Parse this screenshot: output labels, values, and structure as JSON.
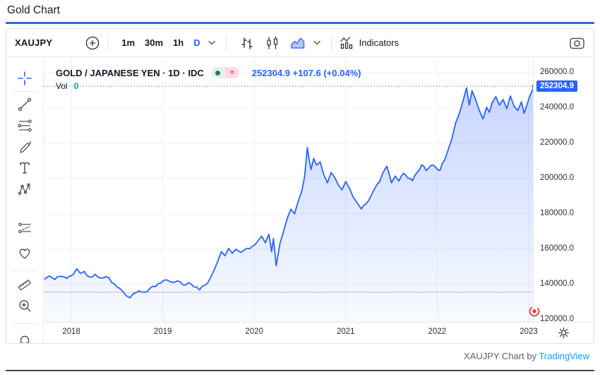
{
  "page": {
    "title": "Gold Chart",
    "attribution_prefix": "XAUJPY Chart by ",
    "attribution_link": "TradingView"
  },
  "toolbar": {
    "symbol": "XAUJPY",
    "intervals": [
      "1m",
      "30m",
      "1h",
      "D"
    ],
    "active_interval": "D",
    "indicators_label": "Indicators",
    "icons": [
      "compare-plus-icon",
      "bars-style-icon",
      "candles-style-icon",
      "area-style-icon",
      "chevron-down-icon",
      "indicators-icon",
      "camera-icon"
    ]
  },
  "sidebar": {
    "tools": [
      "crosshair",
      "trend-line",
      "fib-retracement",
      "brush",
      "text",
      "xabcd-pattern",
      "long-short-position",
      "emoji-heart",
      "measure-ruler",
      "zoom-in",
      "magnet"
    ]
  },
  "legend": {
    "title": "GOLD / JAPANESE YEN · 1D · IDC",
    "market_status": "open",
    "delayed_symbol": "≈",
    "price": "252304.9",
    "change": "+107.6",
    "change_pct": "(+0.04%)",
    "vol_label": "Vol",
    "vol_value": "0"
  },
  "axis": {
    "last_price_label": "252304.9",
    "price_ticks": [
      {
        "label": "260000.0",
        "value": 260000
      },
      {
        "label": "240000.0",
        "value": 240000
      },
      {
        "label": "220000.0",
        "value": 220000
      },
      {
        "label": "200000.0",
        "value": 200000
      },
      {
        "label": "180000.0",
        "value": 180000
      },
      {
        "label": "160000.0",
        "value": 160000
      },
      {
        "label": "140000.0",
        "value": 140000
      },
      {
        "label": "120000.0",
        "value": 120000
      }
    ],
    "time_ticks": [
      {
        "label": "2018",
        "value": 2018
      },
      {
        "label": "2019",
        "value": 2019
      },
      {
        "label": "2020",
        "value": 2020
      },
      {
        "label": "2021",
        "value": 2021
      },
      {
        "label": "2022",
        "value": 2022
      },
      {
        "label": "2023",
        "value": 2023
      }
    ]
  },
  "colors": {
    "accent": "#2962ff",
    "line": "#2962ff",
    "area_top": "rgba(41,98,255,0.26)",
    "area_bottom": "rgba(41,98,255,0.03)",
    "grid": "#eef0f5",
    "up": "#089981",
    "down": "#f23645",
    "link": "#2196f3",
    "title_underline": "#3069d6"
  },
  "chart_data": {
    "type": "area",
    "title": "GOLD / JAPANESE YEN · 1D · IDC",
    "symbol": "XAUJPY",
    "interval": "1D",
    "exchange": "IDC",
    "last_price": 252304.9,
    "change": 107.6,
    "change_pct": 0.04,
    "xlabel": "",
    "ylabel": "",
    "grid": true,
    "legend_position": "top-left",
    "xlim": [
      2017.699,
      2023.046
    ],
    "ylim": [
      118800,
      268800
    ],
    "x_ticks": [
      2018,
      2019,
      2020,
      2021,
      2022,
      2023
    ],
    "y_ticks": [
      260000,
      240000,
      220000,
      200000,
      180000,
      160000,
      140000,
      120000
    ],
    "horizontal_line": 135600,
    "series": [
      {
        "name": "XAUJPY",
        "points": [
          [
            2017.71,
            143000
          ],
          [
            2017.76,
            144800
          ],
          [
            2017.82,
            142800
          ],
          [
            2017.88,
            144600
          ],
          [
            2017.95,
            143400
          ],
          [
            2018.02,
            145600
          ],
          [
            2018.06,
            148800
          ],
          [
            2018.1,
            146200
          ],
          [
            2018.14,
            147400
          ],
          [
            2018.2,
            144200
          ],
          [
            2018.26,
            145800
          ],
          [
            2018.32,
            143600
          ],
          [
            2018.38,
            144400
          ],
          [
            2018.44,
            141200
          ],
          [
            2018.5,
            138600
          ],
          [
            2018.56,
            136200
          ],
          [
            2018.6,
            133600
          ],
          [
            2018.64,
            132400
          ],
          [
            2018.68,
            134800
          ],
          [
            2018.74,
            136400
          ],
          [
            2018.8,
            135600
          ],
          [
            2018.86,
            137800
          ],
          [
            2018.92,
            138800
          ],
          [
            2018.98,
            140800
          ],
          [
            2019.04,
            142600
          ],
          [
            2019.1,
            141200
          ],
          [
            2019.16,
            142000
          ],
          [
            2019.22,
            139800
          ],
          [
            2019.28,
            141000
          ],
          [
            2019.34,
            138600
          ],
          [
            2019.4,
            136900
          ],
          [
            2019.46,
            139600
          ],
          [
            2019.52,
            143600
          ],
          [
            2019.56,
            148000
          ],
          [
            2019.6,
            153000
          ],
          [
            2019.64,
            158600
          ],
          [
            2019.68,
            156200
          ],
          [
            2019.72,
            160400
          ],
          [
            2019.76,
            157600
          ],
          [
            2019.8,
            160000
          ],
          [
            2019.86,
            158200
          ],
          [
            2019.92,
            160400
          ],
          [
            2019.98,
            161600
          ],
          [
            2020.04,
            164600
          ],
          [
            2020.08,
            167400
          ],
          [
            2020.12,
            163600
          ],
          [
            2020.16,
            168400
          ],
          [
            2020.19,
            158600
          ],
          [
            2020.21,
            166000
          ],
          [
            2020.24,
            150600
          ],
          [
            2020.28,
            163000
          ],
          [
            2020.32,
            170000
          ],
          [
            2020.36,
            177400
          ],
          [
            2020.4,
            182600
          ],
          [
            2020.44,
            180000
          ],
          [
            2020.48,
            187000
          ],
          [
            2020.52,
            193000
          ],
          [
            2020.55,
            201000
          ],
          [
            2020.58,
            217600
          ],
          [
            2020.6,
            210600
          ],
          [
            2020.62,
            205200
          ],
          [
            2020.65,
            211400
          ],
          [
            2020.68,
            207600
          ],
          [
            2020.72,
            209400
          ],
          [
            2020.76,
            202200
          ],
          [
            2020.8,
            197600
          ],
          [
            2020.84,
            203400
          ],
          [
            2020.88,
            200600
          ],
          [
            2020.92,
            196200
          ],
          [
            2020.96,
            193600
          ],
          [
            2021.0,
            198400
          ],
          [
            2021.04,
            194600
          ],
          [
            2021.08,
            189600
          ],
          [
            2021.12,
            186600
          ],
          [
            2021.17,
            182800
          ],
          [
            2021.22,
            185600
          ],
          [
            2021.28,
            190600
          ],
          [
            2021.34,
            196600
          ],
          [
            2021.4,
            202600
          ],
          [
            2021.45,
            207000
          ],
          [
            2021.5,
            197600
          ],
          [
            2021.54,
            201400
          ],
          [
            2021.58,
            198600
          ],
          [
            2021.63,
            203000
          ],
          [
            2021.68,
            200200
          ],
          [
            2021.73,
            198800
          ],
          [
            2021.78,
            203400
          ],
          [
            2021.83,
            207800
          ],
          [
            2021.88,
            204600
          ],
          [
            2021.93,
            207400
          ],
          [
            2021.98,
            206600
          ],
          [
            2022.03,
            204600
          ],
          [
            2022.08,
            210400
          ],
          [
            2022.12,
            216400
          ],
          [
            2022.16,
            222600
          ],
          [
            2022.2,
            231400
          ],
          [
            2022.24,
            236600
          ],
          [
            2022.28,
            243600
          ],
          [
            2022.32,
            251400
          ],
          [
            2022.35,
            241600
          ],
          [
            2022.38,
            249800
          ],
          [
            2022.42,
            244600
          ],
          [
            2022.46,
            238600
          ],
          [
            2022.5,
            233800
          ],
          [
            2022.54,
            240400
          ],
          [
            2022.57,
            237600
          ],
          [
            2022.6,
            243000
          ],
          [
            2022.64,
            246400
          ],
          [
            2022.68,
            241600
          ],
          [
            2022.72,
            244800
          ],
          [
            2022.76,
            239600
          ],
          [
            2022.8,
            246800
          ],
          [
            2022.84,
            241000
          ],
          [
            2022.88,
            238600
          ],
          [
            2022.92,
            243400
          ],
          [
            2022.95,
            237000
          ],
          [
            2022.98,
            241600
          ],
          [
            2023.01,
            246600
          ],
          [
            2023.04,
            250000
          ],
          [
            2023.06,
            252304.9
          ]
        ]
      }
    ]
  }
}
